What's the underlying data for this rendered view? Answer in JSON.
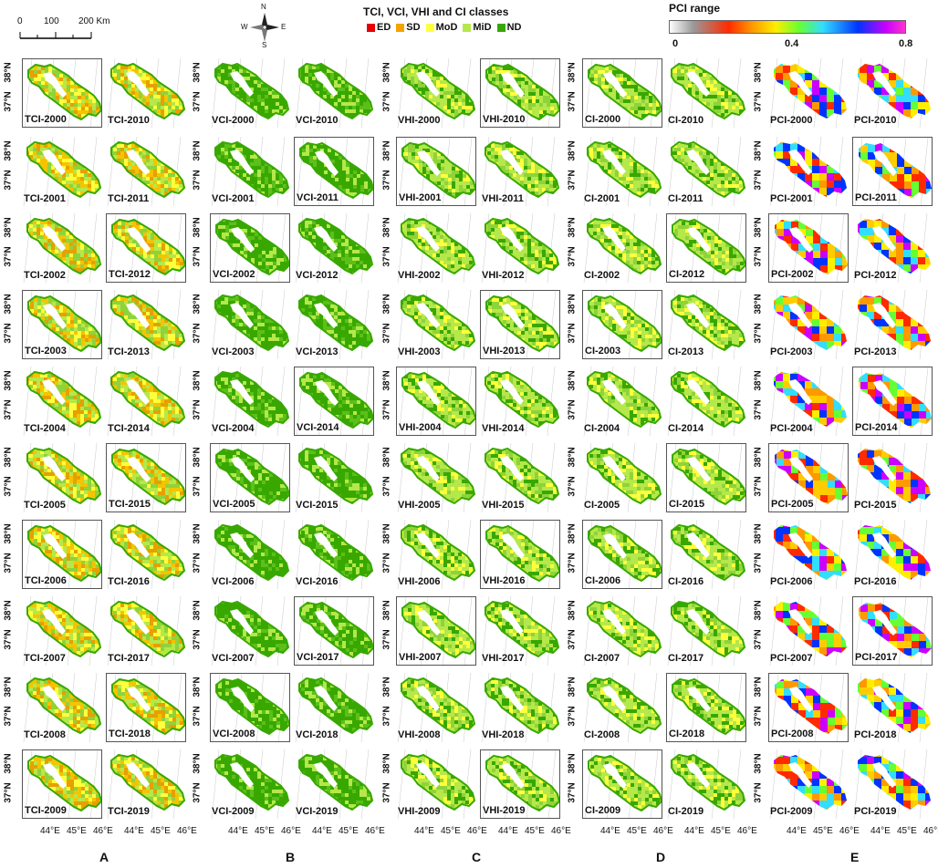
{
  "scale_bar": {
    "ticks": [
      "0",
      "100",
      "200 Km"
    ]
  },
  "compass": {
    "n": "N",
    "s": "S",
    "e": "E",
    "w": "W"
  },
  "legend": {
    "title": "TCI, VCI, VHI and CI classes",
    "classes": [
      {
        "label": "ED",
        "color": "#e60000"
      },
      {
        "label": "SD",
        "color": "#f5a300"
      },
      {
        "label": "MoD",
        "color": "#ffff3c"
      },
      {
        "label": "MiD",
        "color": "#b5e84a"
      },
      {
        "label": "ND",
        "color": "#38a800"
      }
    ]
  },
  "pci_legend": {
    "title": "PCI range",
    "ticks": [
      "0",
      "0.4",
      "0.8"
    ]
  },
  "lat_labels": [
    "38°N",
    "37°N"
  ],
  "lon_labels": [
    "44°E",
    "45°E",
    "46°E"
  ],
  "columns": [
    {
      "letter": "A",
      "index": "TCI",
      "years_left": [
        "2000",
        "2001",
        "2002",
        "2003",
        "2004",
        "2005",
        "2006",
        "2007",
        "2008",
        "2009"
      ],
      "years_right": [
        "2010",
        "2011",
        "2012",
        "2013",
        "2014",
        "2015",
        "2016",
        "2017",
        "2018",
        "2019"
      ]
    },
    {
      "letter": "B",
      "index": "VCI",
      "years_left": [
        "2000",
        "2001",
        "2002",
        "2003",
        "2004",
        "2005",
        "2006",
        "2007",
        "2008",
        "2009"
      ],
      "years_right": [
        "2010",
        "2011",
        "2012",
        "2013",
        "2014",
        "2015",
        "2016",
        "2017",
        "2018",
        "2019"
      ]
    },
    {
      "letter": "C",
      "index": "VHI",
      "years_left": [
        "2000",
        "2001",
        "2002",
        "2003",
        "2004",
        "2005",
        "2006",
        "2007",
        "2008",
        "2009"
      ],
      "years_right": [
        "2010",
        "2011",
        "2012",
        "2013",
        "2014",
        "2015",
        "2016",
        "2017",
        "2018",
        "2019"
      ]
    },
    {
      "letter": "D",
      "index": "CI",
      "years_left": [
        "2000",
        "2001",
        "2002",
        "2003",
        "2004",
        "2005",
        "2006",
        "2007",
        "2008",
        "2009"
      ],
      "years_right": [
        "2010",
        "2011",
        "2012",
        "2013",
        "2014",
        "2015",
        "2016",
        "2017",
        "2018",
        "2019"
      ]
    },
    {
      "letter": "E",
      "index": "PCI",
      "years_left": [
        "2000",
        "2001",
        "2002",
        "2003",
        "2004",
        "2005",
        "2006",
        "2007",
        "2008",
        "2009"
      ],
      "years_right": [
        "2010",
        "2011",
        "2012",
        "2013",
        "2014",
        "2015",
        "2016",
        "2017",
        "2018",
        "2019"
      ]
    }
  ]
}
